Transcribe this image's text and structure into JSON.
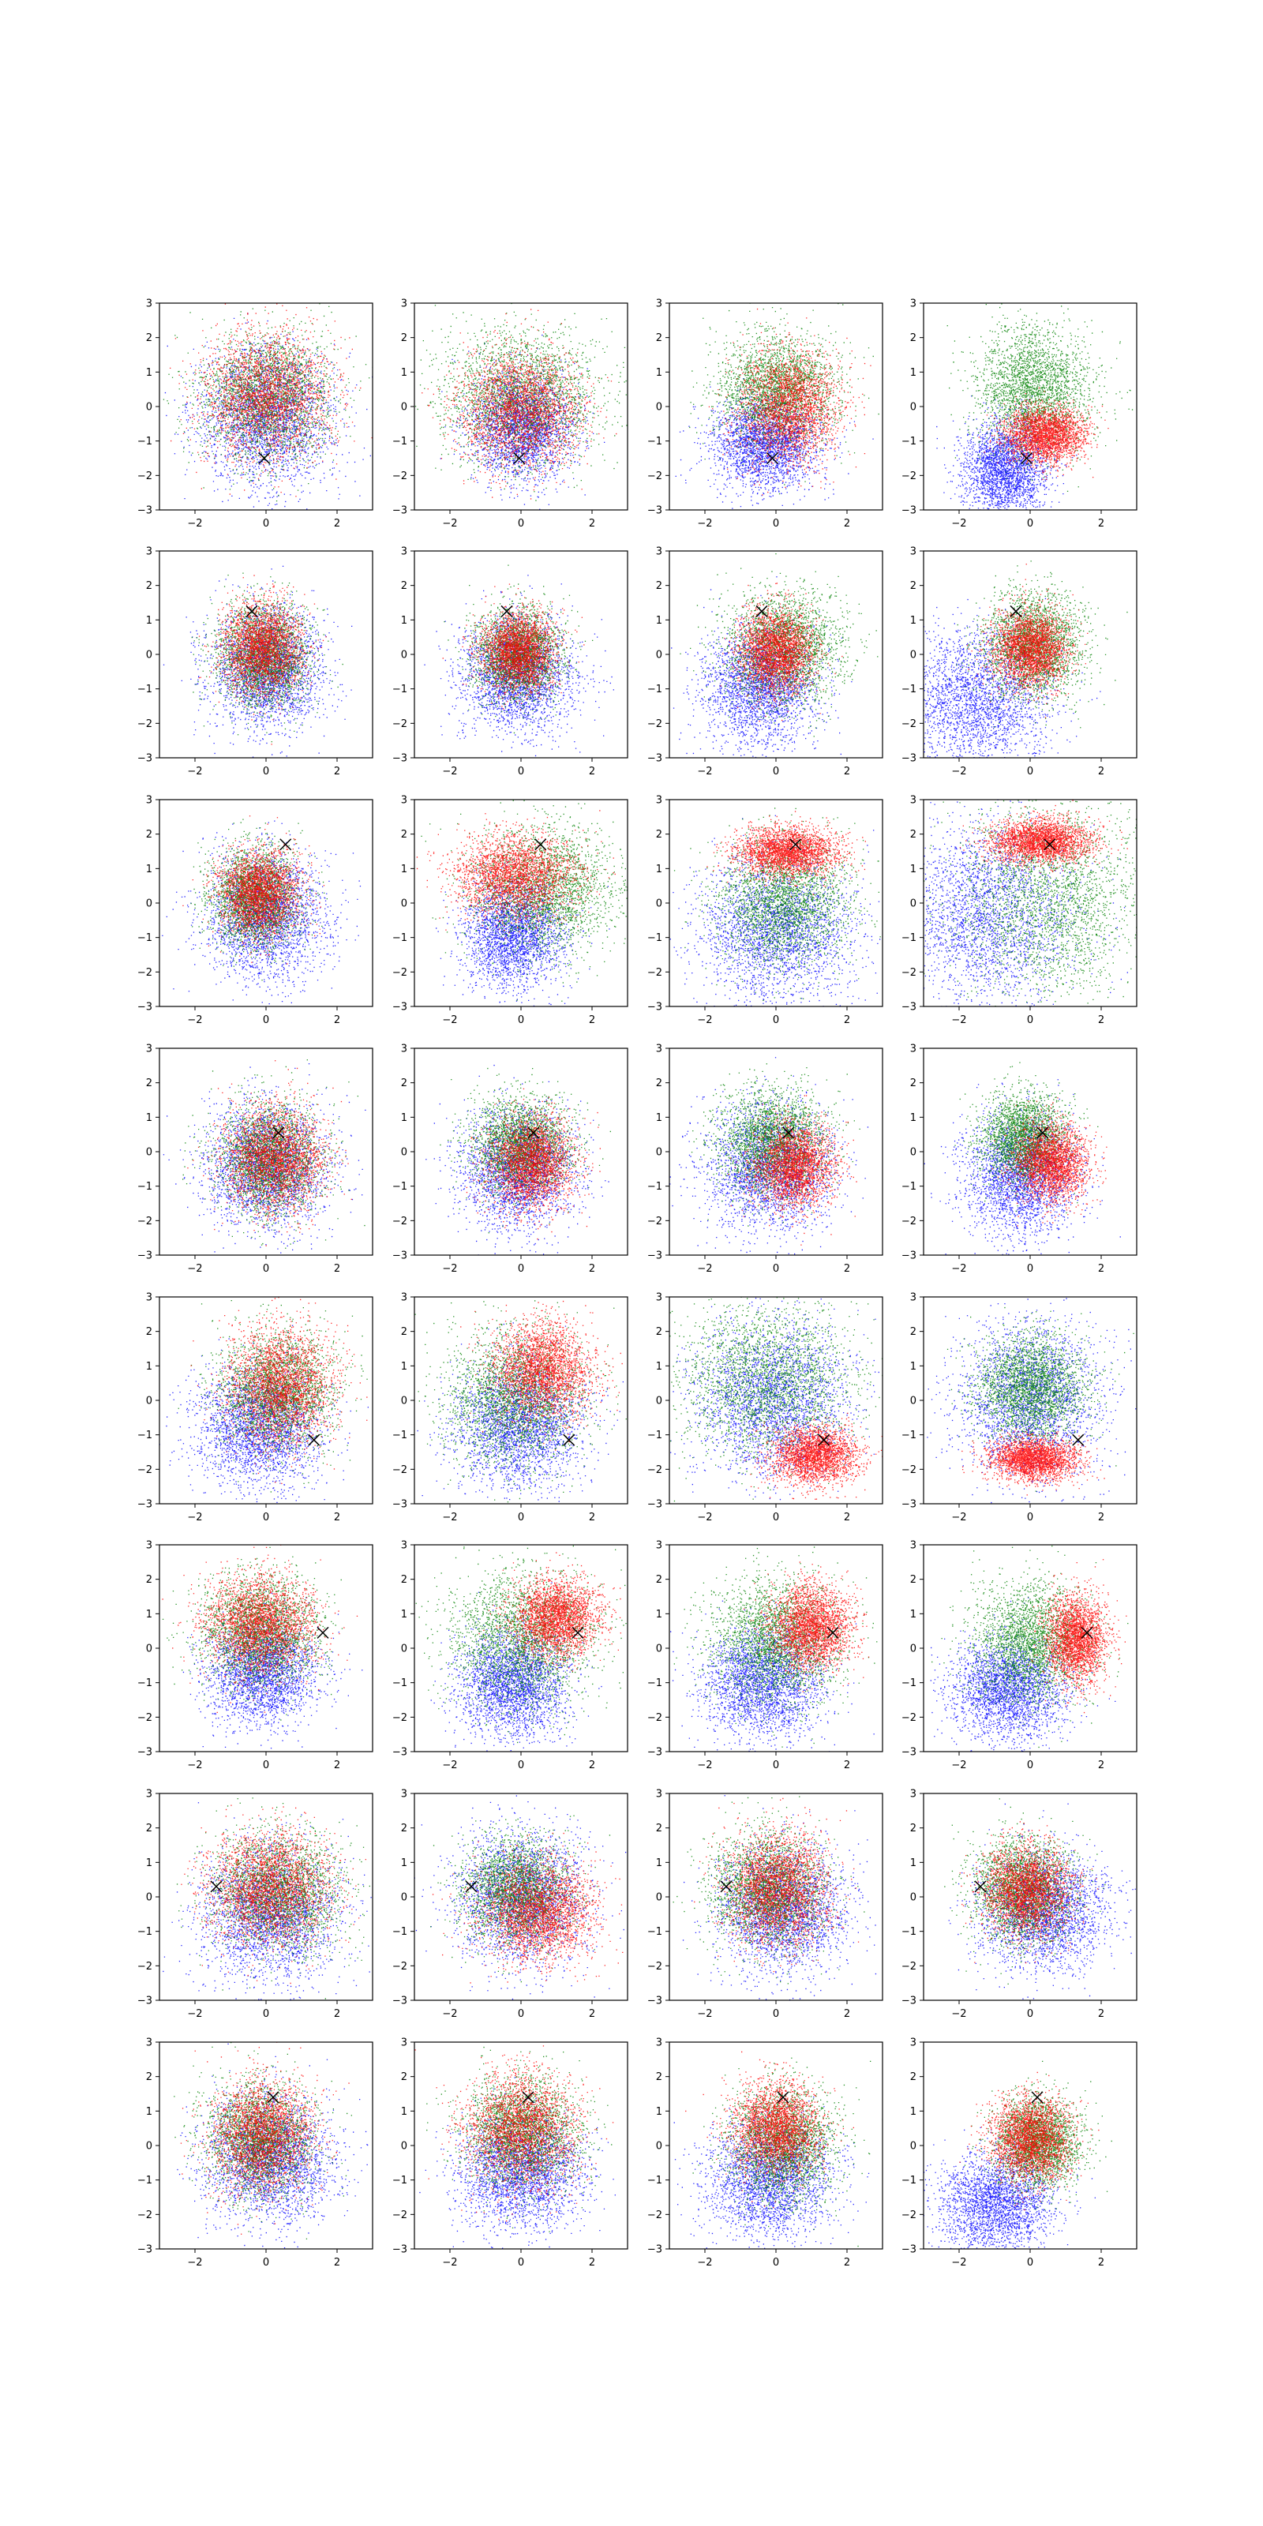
{
  "figure": {
    "rows": 8,
    "cols": 4,
    "colors": {
      "blue": "#0000ff",
      "green": "#008000",
      "red": "#ff0000",
      "marker": "#000000"
    }
  },
  "chart_data": {
    "type": "scatter",
    "axes": {
      "xlim": [
        -3,
        3
      ],
      "ylim": [
        -3,
        3
      ],
      "xticks": [
        -2,
        0,
        2
      ],
      "yticks": [
        -3,
        -2,
        -1,
        0,
        1,
        2,
        3
      ],
      "xtick_labels": [
        "−2",
        "0",
        "2"
      ],
      "ytick_labels": [
        "−3",
        "−2",
        "−1",
        "0",
        "1",
        "2",
        "3"
      ],
      "grid": false,
      "legend": "none"
    },
    "series_colors": [
      "blue",
      "green",
      "red"
    ],
    "points_per_series": 2500,
    "panels": [
      {
        "row": 0,
        "col": 0,
        "marker": [
          -0.05,
          -1.5
        ],
        "series": [
          {
            "color": "blue",
            "cx": 0,
            "cy": -0.3,
            "sx": 0.95,
            "sy": 1.0
          },
          {
            "color": "green",
            "cx": 0,
            "cy": 0.3,
            "sx": 0.95,
            "sy": 0.9
          },
          {
            "color": "red",
            "cx": 0,
            "cy": 0.3,
            "sx": 0.9,
            "sy": 0.9
          }
        ]
      },
      {
        "row": 0,
        "col": 1,
        "marker": [
          -0.05,
          -1.5
        ],
        "series": [
          {
            "color": "blue",
            "cx": 0,
            "cy": -0.6,
            "sx": 0.7,
            "sy": 0.75
          },
          {
            "color": "green",
            "cx": 0,
            "cy": 0.3,
            "sx": 1.1,
            "sy": 1.0
          },
          {
            "color": "red",
            "cx": 0,
            "cy": -0.1,
            "sx": 0.85,
            "sy": 0.85
          }
        ]
      },
      {
        "row": 0,
        "col": 2,
        "marker": [
          -0.1,
          -1.5
        ],
        "series": [
          {
            "color": "blue",
            "cx": -0.3,
            "cy": -1.1,
            "sx": 0.75,
            "sy": 0.65
          },
          {
            "color": "green",
            "cx": 0,
            "cy": 0.5,
            "sx": 0.8,
            "sy": 0.8
          },
          {
            "color": "red",
            "cx": 0.4,
            "cy": 0,
            "sx": 0.7,
            "sy": 0.8
          }
        ]
      },
      {
        "row": 0,
        "col": 3,
        "marker": [
          -0.1,
          -1.5
        ],
        "series": [
          {
            "color": "blue",
            "cx": -0.7,
            "cy": -1.8,
            "sx": 0.6,
            "sy": 0.7
          },
          {
            "color": "green",
            "cx": 0.1,
            "cy": 0.5,
            "sx": 0.8,
            "sy": 0.9
          },
          {
            "color": "red",
            "cx": 0.4,
            "cy": -0.8,
            "sx": 0.55,
            "sy": 0.4
          }
        ]
      },
      {
        "row": 1,
        "col": 0,
        "marker": [
          -0.4,
          1.25
        ],
        "series": [
          {
            "color": "blue",
            "cx": 0,
            "cy": -0.4,
            "sx": 0.8,
            "sy": 0.85
          },
          {
            "color": "green",
            "cx": -0.1,
            "cy": 0,
            "sx": 0.65,
            "sy": 0.75
          },
          {
            "color": "red",
            "cx": -0.1,
            "cy": 0.2,
            "sx": 0.55,
            "sy": 0.65
          }
        ]
      },
      {
        "row": 1,
        "col": 1,
        "marker": [
          -0.4,
          1.25
        ],
        "series": [
          {
            "color": "blue",
            "cx": -0.1,
            "cy": -0.6,
            "sx": 0.8,
            "sy": 0.8
          },
          {
            "color": "green",
            "cx": -0.1,
            "cy": 0,
            "sx": 0.6,
            "sy": 0.65
          },
          {
            "color": "red",
            "cx": -0.1,
            "cy": 0.1,
            "sx": 0.5,
            "sy": 0.55
          }
        ]
      },
      {
        "row": 1,
        "col": 2,
        "marker": [
          -0.4,
          1.25
        ],
        "series": [
          {
            "color": "blue",
            "cx": -0.5,
            "cy": -0.9,
            "sx": 0.8,
            "sy": 0.85
          },
          {
            "color": "green",
            "cx": 0.2,
            "cy": 0.2,
            "sx": 0.8,
            "sy": 0.8
          },
          {
            "color": "red",
            "cx": 0,
            "cy": 0.1,
            "sx": 0.5,
            "sy": 0.6
          }
        ]
      },
      {
        "row": 1,
        "col": 3,
        "marker": [
          -0.4,
          1.25
        ],
        "series": [
          {
            "color": "blue",
            "cx": -1.5,
            "cy": -1.3,
            "sx": 1.0,
            "sy": 1.0
          },
          {
            "color": "green",
            "cx": 0.1,
            "cy": 0.3,
            "sx": 0.7,
            "sy": 0.75
          },
          {
            "color": "red",
            "cx": 0,
            "cy": 0.2,
            "sx": 0.5,
            "sy": 0.55
          }
        ]
      },
      {
        "row": 2,
        "col": 0,
        "marker": [
          0.55,
          1.7
        ],
        "series": [
          {
            "color": "blue",
            "cx": 0,
            "cy": -0.4,
            "sx": 0.85,
            "sy": 0.9
          },
          {
            "color": "green",
            "cx": -0.3,
            "cy": 0.2,
            "sx": 0.6,
            "sy": 0.7
          },
          {
            "color": "red",
            "cx": -0.2,
            "cy": 0.3,
            "sx": 0.55,
            "sy": 0.6
          }
        ]
      },
      {
        "row": 2,
        "col": 1,
        "marker": [
          0.55,
          1.7
        ],
        "series": [
          {
            "color": "blue",
            "cx": -0.2,
            "cy": -0.9,
            "sx": 0.7,
            "sy": 0.75
          },
          {
            "color": "green",
            "cx": 0.6,
            "cy": 0.4,
            "sx": 1.0,
            "sy": 0.9
          },
          {
            "color": "red",
            "cx": -0.2,
            "cy": 0.8,
            "sx": 0.85,
            "sy": 0.6
          }
        ]
      },
      {
        "row": 2,
        "col": 2,
        "marker": [
          0.55,
          1.7
        ],
        "series": [
          {
            "color": "blue",
            "cx": 0,
            "cy": -0.8,
            "sx": 1.1,
            "sy": 1.0
          },
          {
            "color": "green",
            "cx": 0.2,
            "cy": 0,
            "sx": 0.9,
            "sy": 0.9
          },
          {
            "color": "red",
            "cx": 0.3,
            "cy": 1.5,
            "sx": 0.7,
            "sy": 0.35
          }
        ]
      },
      {
        "row": 2,
        "col": 3,
        "marker": [
          0.55,
          1.7
        ],
        "series": [
          {
            "color": "blue",
            "cx": -1.2,
            "cy": -0.3,
            "sx": 1.2,
            "sy": 1.3
          },
          {
            "color": "green",
            "cx": 0.6,
            "cy": 0.1,
            "sx": 1.3,
            "sy": 1.4
          },
          {
            "color": "red",
            "cx": 0.3,
            "cy": 1.8,
            "sx": 0.7,
            "sy": 0.3
          }
        ]
      },
      {
        "row": 3,
        "col": 0,
        "marker": [
          0.35,
          0.55
        ],
        "series": [
          {
            "color": "blue",
            "cx": 0,
            "cy": -0.4,
            "sx": 0.85,
            "sy": 0.9
          },
          {
            "color": "green",
            "cx": 0.1,
            "cy": -0.2,
            "sx": 0.75,
            "sy": 0.8
          },
          {
            "color": "red",
            "cx": 0.2,
            "cy": -0.2,
            "sx": 0.7,
            "sy": 0.75
          }
        ]
      },
      {
        "row": 3,
        "col": 1,
        "marker": [
          0.35,
          0.55
        ],
        "series": [
          {
            "color": "blue",
            "cx": -0.1,
            "cy": -0.5,
            "sx": 0.8,
            "sy": 0.85
          },
          {
            "color": "green",
            "cx": 0,
            "cy": 0.2,
            "sx": 0.7,
            "sy": 0.7
          },
          {
            "color": "red",
            "cx": 0.3,
            "cy": -0.3,
            "sx": 0.6,
            "sy": 0.65
          }
        ]
      },
      {
        "row": 3,
        "col": 2,
        "marker": [
          0.35,
          0.55
        ],
        "series": [
          {
            "color": "blue",
            "cx": -0.2,
            "cy": -0.5,
            "sx": 0.9,
            "sy": 0.9
          },
          {
            "color": "green",
            "cx": -0.1,
            "cy": 0.3,
            "sx": 0.75,
            "sy": 0.75
          },
          {
            "color": "red",
            "cx": 0.5,
            "cy": -0.4,
            "sx": 0.55,
            "sy": 0.6
          }
        ]
      },
      {
        "row": 3,
        "col": 3,
        "marker": [
          0.35,
          0.55
        ],
        "series": [
          {
            "color": "blue",
            "cx": -0.3,
            "cy": -0.7,
            "sx": 0.8,
            "sy": 0.85
          },
          {
            "color": "green",
            "cx": -0.2,
            "cy": 0.4,
            "sx": 0.6,
            "sy": 0.65
          },
          {
            "color": "red",
            "cx": 0.6,
            "cy": -0.3,
            "sx": 0.5,
            "sy": 0.55
          }
        ]
      },
      {
        "row": 4,
        "col": 0,
        "marker": [
          1.35,
          -1.15
        ],
        "series": [
          {
            "color": "blue",
            "cx": -0.2,
            "cy": -0.8,
            "sx": 0.9,
            "sy": 0.85
          },
          {
            "color": "green",
            "cx": 0.3,
            "cy": 0.3,
            "sx": 0.8,
            "sy": 0.85
          },
          {
            "color": "red",
            "cx": 0.4,
            "cy": 0.4,
            "sx": 0.75,
            "sy": 0.85
          }
        ]
      },
      {
        "row": 4,
        "col": 1,
        "marker": [
          1.35,
          -1.15
        ],
        "series": [
          {
            "color": "blue",
            "cx": -0.1,
            "cy": -0.7,
            "sx": 0.9,
            "sy": 0.9
          },
          {
            "color": "green",
            "cx": -0.2,
            "cy": 0.1,
            "sx": 0.95,
            "sy": 0.95
          },
          {
            "color": "red",
            "cx": 0.6,
            "cy": 0.9,
            "sx": 0.7,
            "sy": 0.7
          }
        ]
      },
      {
        "row": 4,
        "col": 2,
        "marker": [
          1.35,
          -1.15
        ],
        "series": [
          {
            "color": "blue",
            "cx": -0.1,
            "cy": 0,
            "sx": 1.1,
            "sy": 1.1
          },
          {
            "color": "green",
            "cx": -0.3,
            "cy": 0.6,
            "sx": 1.2,
            "sy": 1.1
          },
          {
            "color": "red",
            "cx": 1.1,
            "cy": -1.6,
            "sx": 0.6,
            "sy": 0.4
          }
        ]
      },
      {
        "row": 4,
        "col": 3,
        "marker": [
          1.35,
          -1.15
        ],
        "series": [
          {
            "color": "blue",
            "cx": 0,
            "cy": 0,
            "sx": 1.0,
            "sy": 1.1
          },
          {
            "color": "green",
            "cx": 0,
            "cy": 0.4,
            "sx": 0.75,
            "sy": 0.75
          },
          {
            "color": "red",
            "cx": 0.1,
            "cy": -1.7,
            "sx": 0.6,
            "sy": 0.3
          }
        ]
      },
      {
        "row": 5,
        "col": 0,
        "marker": [
          1.6,
          0.45
        ],
        "series": [
          {
            "color": "blue",
            "cx": -0.1,
            "cy": -0.7,
            "sx": 0.75,
            "sy": 0.75
          },
          {
            "color": "green",
            "cx": -0.2,
            "cy": 0.5,
            "sx": 0.8,
            "sy": 0.8
          },
          {
            "color": "red",
            "cx": -0.2,
            "cy": 0.7,
            "sx": 0.75,
            "sy": 0.7
          }
        ]
      },
      {
        "row": 5,
        "col": 1,
        "marker": [
          1.6,
          0.45
        ],
        "series": [
          {
            "color": "blue",
            "cx": -0.3,
            "cy": -1.0,
            "sx": 0.75,
            "sy": 0.75
          },
          {
            "color": "green",
            "cx": 0,
            "cy": 0.3,
            "sx": 1.0,
            "sy": 1.0
          },
          {
            "color": "red",
            "cx": 1.0,
            "cy": 0.9,
            "sx": 0.6,
            "sy": 0.55
          }
        ]
      },
      {
        "row": 5,
        "col": 2,
        "marker": [
          1.6,
          0.45
        ],
        "series": [
          {
            "color": "blue",
            "cx": -0.4,
            "cy": -1.0,
            "sx": 0.85,
            "sy": 0.8
          },
          {
            "color": "green",
            "cx": 0,
            "cy": 0.2,
            "sx": 0.9,
            "sy": 0.9
          },
          {
            "color": "red",
            "cx": 1.0,
            "cy": 0.6,
            "sx": 0.55,
            "sy": 0.6
          }
        ]
      },
      {
        "row": 5,
        "col": 3,
        "marker": [
          1.6,
          0.45
        ],
        "series": [
          {
            "color": "blue",
            "cx": -0.6,
            "cy": -1.2,
            "sx": 0.8,
            "sy": 0.7
          },
          {
            "color": "green",
            "cx": 0,
            "cy": 0.2,
            "sx": 0.8,
            "sy": 0.85
          },
          {
            "color": "red",
            "cx": 1.3,
            "cy": 0.3,
            "sx": 0.4,
            "sy": 0.6
          }
        ]
      },
      {
        "row": 6,
        "col": 0,
        "marker": [
          -1.4,
          0.3
        ],
        "series": [
          {
            "color": "blue",
            "cx": 0.1,
            "cy": -0.5,
            "sx": 0.95,
            "sy": 0.95
          },
          {
            "color": "green",
            "cx": 0.3,
            "cy": 0.2,
            "sx": 0.9,
            "sy": 0.85
          },
          {
            "color": "red",
            "cx": 0.1,
            "cy": 0.3,
            "sx": 0.85,
            "sy": 0.8
          }
        ]
      },
      {
        "row": 6,
        "col": 1,
        "marker": [
          -1.4,
          0.3
        ],
        "series": [
          {
            "color": "blue",
            "cx": 0,
            "cy": 0,
            "sx": 0.9,
            "sy": 0.95
          },
          {
            "color": "green",
            "cx": -0.1,
            "cy": 0.2,
            "sx": 0.75,
            "sy": 0.75
          },
          {
            "color": "red",
            "cx": 0.5,
            "cy": -0.4,
            "sx": 0.8,
            "sy": 0.7
          }
        ]
      },
      {
        "row": 6,
        "col": 2,
        "marker": [
          -1.4,
          0.3
        ],
        "series": [
          {
            "color": "blue",
            "cx": 0.2,
            "cy": -0.4,
            "sx": 0.9,
            "sy": 0.9
          },
          {
            "color": "green",
            "cx": -0.2,
            "cy": 0.2,
            "sx": 0.8,
            "sy": 0.8
          },
          {
            "color": "red",
            "cx": 0,
            "cy": 0.3,
            "sx": 0.7,
            "sy": 0.8
          }
        ]
      },
      {
        "row": 6,
        "col": 3,
        "marker": [
          -1.4,
          0.3
        ],
        "series": [
          {
            "color": "blue",
            "cx": 0.4,
            "cy": -0.4,
            "sx": 0.9,
            "sy": 0.85
          },
          {
            "color": "green",
            "cx": -0.2,
            "cy": 0.2,
            "sx": 0.7,
            "sy": 0.75
          },
          {
            "color": "red",
            "cx": -0.1,
            "cy": 0.2,
            "sx": 0.6,
            "sy": 0.65
          }
        ]
      },
      {
        "row": 7,
        "col": 0,
        "marker": [
          0.2,
          1.4
        ],
        "series": [
          {
            "color": "blue",
            "cx": 0.1,
            "cy": -0.4,
            "sx": 0.9,
            "sy": 0.9
          },
          {
            "color": "green",
            "cx": -0.2,
            "cy": 0.2,
            "sx": 0.75,
            "sy": 0.8
          },
          {
            "color": "red",
            "cx": -0.1,
            "cy": 0.3,
            "sx": 0.7,
            "sy": 0.8
          }
        ]
      },
      {
        "row": 7,
        "col": 1,
        "marker": [
          0.2,
          1.4
        ],
        "series": [
          {
            "color": "blue",
            "cx": 0,
            "cy": -0.8,
            "sx": 0.85,
            "sy": 0.8
          },
          {
            "color": "green",
            "cx": 0,
            "cy": 0.4,
            "sx": 0.8,
            "sy": 0.8
          },
          {
            "color": "red",
            "cx": 0,
            "cy": 0.5,
            "sx": 0.75,
            "sy": 0.8
          }
        ]
      },
      {
        "row": 7,
        "col": 2,
        "marker": [
          0.2,
          1.4
        ],
        "series": [
          {
            "color": "blue",
            "cx": -0.2,
            "cy": -1.0,
            "sx": 0.9,
            "sy": 0.85
          },
          {
            "color": "green",
            "cx": 0.2,
            "cy": 0.1,
            "sx": 0.75,
            "sy": 0.8
          },
          {
            "color": "red",
            "cx": 0,
            "cy": 0.5,
            "sx": 0.6,
            "sy": 0.65
          }
        ]
      },
      {
        "row": 7,
        "col": 3,
        "marker": [
          0.2,
          1.4
        ],
        "series": [
          {
            "color": "blue",
            "cx": -1.0,
            "cy": -1.7,
            "sx": 0.8,
            "sy": 0.75
          },
          {
            "color": "green",
            "cx": 0.2,
            "cy": 0.1,
            "sx": 0.6,
            "sy": 0.65
          },
          {
            "color": "red",
            "cx": 0,
            "cy": 0.2,
            "sx": 0.55,
            "sy": 0.6
          }
        ]
      }
    ]
  }
}
